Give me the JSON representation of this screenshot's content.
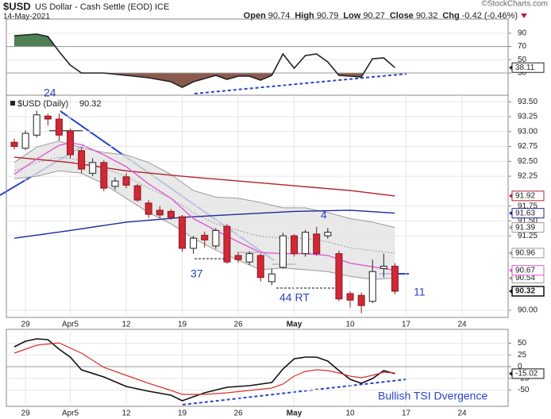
{
  "header": {
    "symbol": "$USD",
    "name": "US Dollar - Cash Settle (EOD) ICE",
    "date": "14-May-2021",
    "source": "©StockCharts.com",
    "quote_labels": [
      "Open",
      "High",
      "Low",
      "Close",
      "Chg"
    ],
    "chg": -0.42,
    "chg_pct": {
      "value": -0.46,
      "label": "(-0.46%)"
    }
  },
  "chart_data": [
    {
      "type": "line",
      "ylim": [
        -3.5,
        111.4
      ],
      "xlim": [
        -0.71,
        44.11
      ],
      "yticks": [
        90,
        70,
        50,
        30
      ],
      "fill_above": {
        "level": 70,
        "color": "#4f7f52"
      },
      "fill_below": {
        "level": 30,
        "color": "#8a5a4e"
      },
      "series": [
        {
          "color": "#222222",
          "tag": true,
          "x": [
            0,
            1,
            2,
            3,
            4,
            5,
            6,
            8,
            10,
            12,
            14,
            15,
            16,
            17,
            18,
            19,
            20,
            21,
            22,
            23,
            24,
            25,
            26,
            27,
            28,
            29,
            30,
            31,
            32,
            33,
            34
          ],
          "values": [
            86.3,
            87.5,
            88.7,
            85.1,
            62.3,
            42.0,
            30.0,
            30.0,
            26.4,
            22.8,
            16.8,
            8.4,
            16.8,
            21.6,
            26.4,
            20.4,
            25.2,
            25.2,
            19.2,
            26.4,
            58.7,
            37.2,
            56.3,
            58.7,
            46.8,
            26.4,
            25.2,
            24.0,
            51.6,
            52.8,
            38.11
          ]
        }
      ]
    },
    {
      "type": "candlestick",
      "label": "$USD (Daily)",
      "ylim": [
        89.88,
        93.61
      ],
      "xlim": [
        -0.71,
        44.11
      ],
      "up_color": "#ffffff",
      "down_color": "#d12836",
      "yticks": [
        {
          "value": 93.5,
          "label": "93.50"
        },
        93.25,
        {
          "value": 93,
          "label": "93.00"
        },
        92.75,
        {
          "value": 92.5,
          "label": "92.50"
        },
        92.25,
        91.75,
        {
          "value": 91.5,
          "label": "91.50"
        },
        91.25,
        {
          "value": 90,
          "label": "90.00"
        }
      ],
      "xticks": [
        {
          "value": 1,
          "label": "29"
        },
        {
          "value": 5,
          "label": "Apr5"
        },
        {
          "value": 10,
          "label": "12"
        },
        {
          "value": 15,
          "label": "19"
        },
        {
          "value": 20,
          "label": "26"
        },
        {
          "value": 25,
          "label": "May"
        },
        {
          "value": 30,
          "label": "10"
        },
        {
          "value": 35,
          "label": "17"
        },
        {
          "value": 40,
          "label": "24"
        }
      ],
      "x": [
        0,
        1,
        2,
        3,
        4,
        5,
        6,
        7,
        8,
        9,
        10,
        11,
        12,
        13,
        14,
        15,
        16,
        17,
        18,
        19,
        20,
        21,
        22,
        23,
        24,
        25,
        26,
        27,
        28,
        29,
        30,
        31,
        32,
        33,
        34
      ],
      "open": [
        92.82,
        92.72,
        92.94,
        93.26,
        93.21,
        93.01,
        92.68,
        92.3,
        92.48,
        92.08,
        92.24,
        92.09,
        91.8,
        91.68,
        91.66,
        91.57,
        91.04,
        91.26,
        91.08,
        91.41,
        90.92,
        90.81,
        90.92,
        90.48,
        90.72,
        91.25,
        90.95,
        91.28,
        91.25,
        90.95,
        90.28,
        90.25,
        90.15,
        90.7,
        90.74
      ],
      "high": [
        92.88,
        93.02,
        93.35,
        93.3,
        93.3,
        93.05,
        92.72,
        92.55,
        92.52,
        92.23,
        92.3,
        92.12,
        91.85,
        91.75,
        91.7,
        91.6,
        91.25,
        91.32,
        91.38,
        91.45,
        90.97,
        90.99,
        90.95,
        90.7,
        91.3,
        91.28,
        91.35,
        91.4,
        91.38,
        91.0,
        90.32,
        90.3,
        90.85,
        90.95,
        90.79
      ],
      "low": [
        92.7,
        92.69,
        92.9,
        93.1,
        92.85,
        92.55,
        92.3,
        92.25,
        92.0,
        92.02,
        92.05,
        91.82,
        91.55,
        91.55,
        91.52,
        90.98,
        90.95,
        91.05,
        91.03,
        90.78,
        90.8,
        90.76,
        90.48,
        90.42,
        90.7,
        90.9,
        90.9,
        90.92,
        91.2,
        90.15,
        90.05,
        89.95,
        90.12,
        90.55,
        90.27
      ],
      "close": [
        92.75,
        92.97,
        93.28,
        93.21,
        92.94,
        92.61,
        92.37,
        92.48,
        92.05,
        92.17,
        92.1,
        91.85,
        91.61,
        91.6,
        91.56,
        91.04,
        91.21,
        91.18,
        91.34,
        90.81,
        90.85,
        90.95,
        90.55,
        90.61,
        91.25,
        90.95,
        91.31,
        90.95,
        91.31,
        90.19,
        90.17,
        90.08,
        90.65,
        90.74,
        90.32
      ],
      "bands": {
        "color": "#9a9a9a",
        "fill": "#e4e4e4",
        "tag": true,
        "x": [
          0,
          2,
          4,
          6,
          8,
          10,
          12,
          14,
          16,
          18,
          20,
          22,
          24,
          26,
          28,
          30,
          32,
          34
        ],
        "upper": [
          92.48,
          92.74,
          92.84,
          92.73,
          92.65,
          92.61,
          92.48,
          92.28,
          92.01,
          91.9,
          91.88,
          91.81,
          91.72,
          91.72,
          91.64,
          91.54,
          91.48,
          91.39
        ],
        "middle": [
          92.34,
          92.48,
          92.57,
          92.52,
          92.38,
          92.25,
          92.05,
          91.88,
          91.64,
          91.45,
          91.34,
          91.24,
          91.21,
          91.21,
          91.15,
          91.05,
          91.0,
          90.96
        ],
        "lower": [
          92.21,
          92.25,
          92.34,
          92.3,
          92.12,
          91.88,
          91.64,
          91.45,
          91.21,
          91.01,
          90.84,
          90.68,
          90.71,
          90.68,
          90.65,
          90.57,
          90.52,
          90.54
        ]
      },
      "series": [
        {
          "color": "#b3202f",
          "tag": true,
          "x": [
            0,
            5,
            10,
            15,
            20,
            25,
            30,
            34
          ],
          "values": [
            92.57,
            92.48,
            92.34,
            92.25,
            92.17,
            92.09,
            92.01,
            91.92
          ]
        },
        {
          "color": "#1c2a9c",
          "tag": true,
          "x": [
            0,
            5,
            10,
            15,
            20,
            25,
            30,
            34
          ],
          "values": [
            91.21,
            91.34,
            91.48,
            91.56,
            91.61,
            91.66,
            91.68,
            91.63
          ]
        },
        {
          "color": "#e05ad2",
          "tag": true,
          "x": [
            0,
            2,
            4,
            5,
            6,
            8,
            10,
            12,
            14,
            16,
            18,
            20,
            22,
            24,
            26,
            28,
            30,
            32,
            34
          ],
          "values": [
            92.28,
            92.54,
            92.77,
            92.81,
            92.78,
            92.61,
            92.41,
            92.12,
            91.88,
            91.54,
            91.34,
            91.15,
            90.97,
            90.95,
            90.95,
            90.92,
            90.79,
            90.73,
            90.67
          ]
        }
      ],
      "annotations": [
        "24",
        "37",
        "4",
        "44 RT",
        "11"
      ]
    },
    {
      "type": "line",
      "ylim": [
        -84.7,
        79.7
      ],
      "xlim": [
        -0.71,
        44.11
      ],
      "yticks": [
        50,
        25,
        0,
        -25,
        -50
      ],
      "xticks": [
        {
          "value": 1,
          "label": "29"
        },
        {
          "value": 5,
          "label": "Apr5"
        },
        {
          "value": 10,
          "label": "12"
        },
        {
          "value": 15,
          "label": "19"
        },
        {
          "value": 20,
          "label": "26"
        },
        {
          "value": 25,
          "label": "May"
        },
        {
          "value": 30,
          "label": "10"
        },
        {
          "value": 35,
          "label": "17"
        },
        {
          "value": 40,
          "label": "24"
        }
      ],
      "series": [
        {
          "color": "#111111",
          "tag": true,
          "x": [
            0,
            1,
            2,
            3,
            4,
            5,
            6,
            8,
            10,
            12,
            14,
            15,
            17,
            19,
            21,
            23,
            24,
            25,
            26,
            27,
            28,
            29,
            30,
            31,
            32,
            33,
            34
          ],
          "values": [
            42.4,
            54.2,
            59.3,
            57.6,
            37.3,
            20.3,
            -6.8,
            -22.0,
            -42.4,
            -52.5,
            -61.0,
            -72.9,
            -55.9,
            -44.1,
            -40.7,
            -33.9,
            -5.1,
            16.9,
            20.3,
            20.3,
            11.9,
            -8.5,
            -27.1,
            -35.6,
            -25.4,
            -8.5,
            -15.02
          ]
        },
        {
          "color": "#d8322c",
          "x": [
            0,
            2,
            4,
            6,
            8,
            10,
            12,
            14,
            15,
            17,
            19,
            21,
            23,
            24,
            25,
            26,
            27,
            28,
            29,
            30,
            31,
            32,
            33,
            34
          ],
          "values": [
            28.8,
            45.8,
            50.8,
            28.8,
            -1.7,
            -18.6,
            -35.6,
            -50.8,
            -59.3,
            -59.3,
            -55.9,
            -50.8,
            -45.8,
            -37.3,
            -20.3,
            -10.2,
            -6.8,
            -8.5,
            -13.6,
            -20.3,
            -23.7,
            -18.6,
            -11.9,
            -13.6
          ]
        }
      ],
      "annotations": [
        "Bullish TSI Dvergence"
      ]
    }
  ]
}
